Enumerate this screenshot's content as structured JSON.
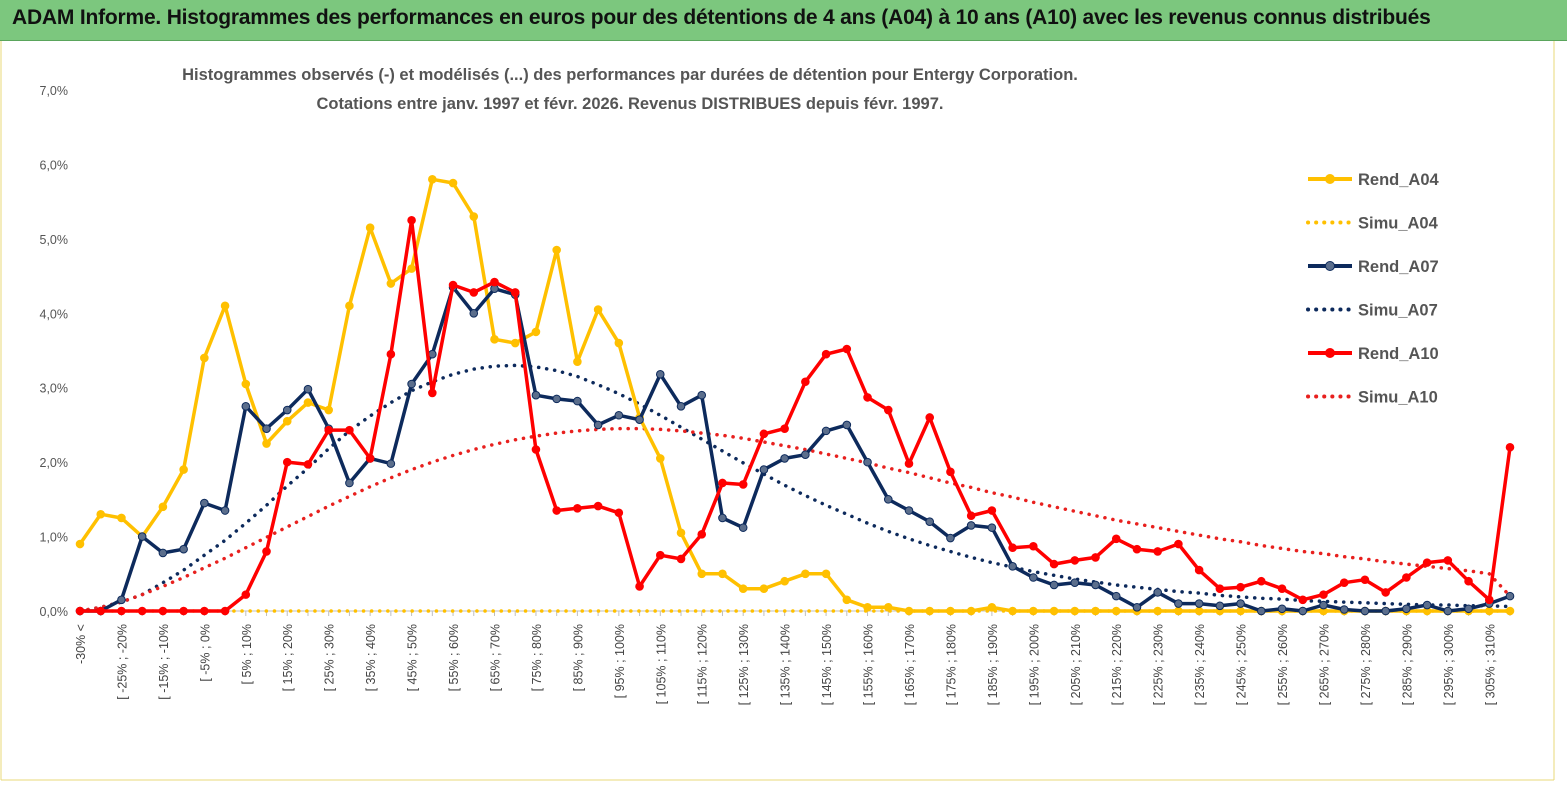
{
  "banner": {
    "title": "ADAM Informe. Histogrammes des performances en euros pour des détentions de 4 ans (A04) à 10 ans (A10) avec les revenus connus distribués"
  },
  "chart_data": {
    "type": "line",
    "title": "Histogrammes observés (-) et modélisés (...) des performances par durées de détention pour Entergy Corporation.",
    "subtitle": "Cotations entre janv. 1997 et févr. 2026. Revenus DISTRIBUES depuis févr. 1997.",
    "ylim": [
      0,
      7
    ],
    "yticks": [
      "0,0%",
      "1,0%",
      "2,0%",
      "3,0%",
      "4,0%",
      "5,0%",
      "6,0%",
      "7,0%"
    ],
    "grid": false,
    "legend_position": "right",
    "xtick_labels": [
      "-30% <",
      "[ -25% ; -20%",
      "[ -15% ; -10%",
      "[ -5% ; 0%",
      "[ 5% ; 10%",
      "[ 15% ; 20%",
      "[ 25% ; 30%",
      "[ 35% ; 40%",
      "[ 45% ; 50%",
      "[ 55% ; 60%",
      "[ 65% ; 70%",
      "[ 75% ; 80%",
      "[ 85% ; 90%",
      "[ 95% ; 100%",
      "[ 105% ; 110%",
      "[ 115% ; 120%",
      "[ 125% ; 130%",
      "[ 135% ; 140%",
      "[ 145% ; 150%",
      "[ 155% ; 160%",
      "[ 165% ; 170%",
      "[ 175% ; 180%",
      "[ 185% ; 190%",
      "[ 195% ; 200%",
      "[ 205% ; 210%",
      "[ 215% ; 220%",
      "[ 225% ; 230%",
      "[ 235% ; 240%",
      "[ 245% ; 250%",
      "[ 255% ; 260%",
      "[ 265% ; 270%",
      "[ 275% ; 280%",
      "[ 285% ; 290%",
      "[ 295% ; 300%",
      "[ 305% ; 310%"
    ],
    "series": [
      {
        "name": "Rend_A04",
        "color": "#ffc000",
        "style": "solid",
        "markers": true,
        "values": [
          0.9,
          1.3,
          1.25,
          1.0,
          1.4,
          1.9,
          3.4,
          4.1,
          3.05,
          2.25,
          2.55,
          2.8,
          2.7,
          4.1,
          5.15,
          4.4,
          4.6,
          5.8,
          5.75,
          5.3,
          3.65,
          3.6,
          3.75,
          4.85,
          3.35,
          4.05,
          3.6,
          2.6,
          2.05,
          1.05,
          0.5,
          0.5,
          0.3,
          0.3,
          0.4,
          0.5,
          0.5,
          0.15,
          0.05,
          0.05,
          0.0,
          0.0,
          0.0,
          0.0,
          0.05,
          0.0,
          0.0,
          0.0,
          0.0,
          0.0,
          0.0,
          0.0,
          0.0,
          0.0,
          0.0,
          0.0,
          0.0,
          0.0,
          0.0,
          0.0,
          0.0,
          0.0,
          0.0,
          0.0,
          0.0,
          0.0,
          0.0,
          0.0,
          0.0,
          0.0
        ]
      },
      {
        "name": "Simu_A04",
        "color": "#ffc000",
        "style": "dotted",
        "markers": false,
        "values": [
          0.0,
          0.0,
          0.0,
          0.0,
          0.0,
          0.0,
          0.0,
          0.0,
          0.0,
          0.0,
          0.0,
          0.0,
          0.0,
          0.0,
          0.0,
          0.0,
          0.0,
          0.0,
          0.0,
          0.0,
          0.0,
          0.0,
          0.0,
          0.0,
          0.0,
          0.0,
          0.0,
          0.0,
          0.0,
          0.0,
          0.0,
          0.0,
          0.0,
          0.0,
          0.0,
          0.0,
          0.0,
          0.0,
          0.0,
          0.0,
          0.0,
          0.0,
          0.0,
          0.0,
          0.0,
          0.0,
          0.0,
          0.0,
          0.0,
          0.0,
          0.0,
          0.0,
          0.0,
          0.0,
          0.0,
          0.0,
          0.0,
          0.0,
          0.0,
          0.0,
          0.0,
          0.0,
          0.0,
          0.0,
          0.0,
          0.0,
          0.0,
          0.0,
          0.0,
          0.0
        ]
      },
      {
        "name": "Rend_A07",
        "color": "#0d2a5c",
        "style": "solid",
        "markers": true,
        "values": [
          0.0,
          0.0,
          0.15,
          1.0,
          0.78,
          0.83,
          1.45,
          1.35,
          2.75,
          2.45,
          2.7,
          2.98,
          2.45,
          1.72,
          2.05,
          1.98,
          3.05,
          3.45,
          4.35,
          4.0,
          4.33,
          4.25,
          2.9,
          2.85,
          2.82,
          2.5,
          2.63,
          2.57,
          3.18,
          2.75,
          2.9,
          1.25,
          1.12,
          1.9,
          2.05,
          2.1,
          2.42,
          2.5,
          2.0,
          1.5,
          1.35,
          1.2,
          0.98,
          1.15,
          1.12,
          0.6,
          0.45,
          0.35,
          0.38,
          0.35,
          0.2,
          0.05,
          0.25,
          0.1,
          0.1,
          0.07,
          0.1,
          0.0,
          0.03,
          0.0,
          0.08,
          0.02,
          0.0,
          0.0,
          0.03,
          0.08,
          0.0,
          0.03,
          0.1,
          0.2
        ]
      },
      {
        "name": "Simu_A07",
        "color": "#0d2a5c",
        "style": "dotted",
        "markers": false,
        "values": [
          0.0,
          0.05,
          0.12,
          0.22,
          0.38,
          0.55,
          0.75,
          0.95,
          1.18,
          1.42,
          1.68,
          1.92,
          2.18,
          2.42,
          2.62,
          2.8,
          2.96,
          3.08,
          3.18,
          3.25,
          3.29,
          3.3,
          3.28,
          3.23,
          3.15,
          3.04,
          2.92,
          2.78,
          2.63,
          2.47,
          2.31,
          2.15,
          1.99,
          1.84,
          1.69,
          1.55,
          1.42,
          1.3,
          1.18,
          1.07,
          0.97,
          0.88,
          0.8,
          0.72,
          0.65,
          0.59,
          0.53,
          0.48,
          0.43,
          0.39,
          0.35,
          0.32,
          0.29,
          0.26,
          0.24,
          0.21,
          0.19,
          0.17,
          0.16,
          0.14,
          0.13,
          0.12,
          0.11,
          0.1,
          0.09,
          0.08,
          0.08,
          0.07,
          0.07,
          0.06
        ]
      },
      {
        "name": "Rend_A10",
        "color": "#ff0000",
        "style": "solid",
        "markers": true,
        "values": [
          0.0,
          0.0,
          0.0,
          0.0,
          0.0,
          0.0,
          0.0,
          0.0,
          0.22,
          0.8,
          2.0,
          1.97,
          2.43,
          2.43,
          2.05,
          3.45,
          5.25,
          2.93,
          4.38,
          4.28,
          4.42,
          4.28,
          2.17,
          1.35,
          1.38,
          1.41,
          1.32,
          0.33,
          0.75,
          0.7,
          1.03,
          1.72,
          1.7,
          2.38,
          2.45,
          3.08,
          3.45,
          3.52,
          2.87,
          2.7,
          1.98,
          2.6,
          1.87,
          1.28,
          1.35,
          0.85,
          0.87,
          0.63,
          0.68,
          0.72,
          0.97,
          0.83,
          0.8,
          0.9,
          0.55,
          0.3,
          0.32,
          0.4,
          0.3,
          0.15,
          0.22,
          0.38,
          0.42,
          0.25,
          0.45,
          0.65,
          0.68,
          0.4,
          0.15,
          2.2
        ]
      },
      {
        "name": "Simu_A10",
        "color": "#e8201e",
        "style": "dotted",
        "markers": false,
        "values": [
          0.0,
          0.05,
          0.12,
          0.22,
          0.33,
          0.45,
          0.58,
          0.71,
          0.85,
          0.99,
          1.13,
          1.27,
          1.41,
          1.54,
          1.67,
          1.79,
          1.9,
          2.0,
          2.09,
          2.17,
          2.24,
          2.3,
          2.35,
          2.39,
          2.42,
          2.44,
          2.45,
          2.45,
          2.44,
          2.42,
          2.39,
          2.36,
          2.32,
          2.27,
          2.22,
          2.17,
          2.11,
          2.05,
          1.99,
          1.92,
          1.86,
          1.79,
          1.72,
          1.66,
          1.59,
          1.53,
          1.46,
          1.4,
          1.34,
          1.28,
          1.22,
          1.17,
          1.12,
          1.07,
          1.02,
          0.97,
          0.93,
          0.88,
          0.84,
          0.8,
          0.77,
          0.73,
          0.7,
          0.66,
          0.63,
          0.6,
          0.57,
          0.54,
          0.5,
          0.2
        ]
      }
    ]
  }
}
